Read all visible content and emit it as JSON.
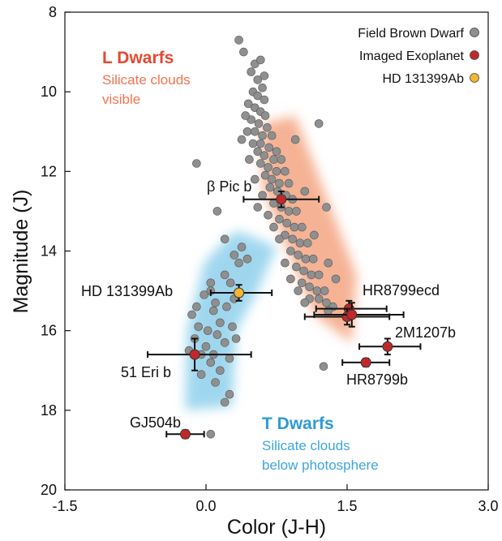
{
  "chart_data": {
    "type": "scatter",
    "xlabel": "Color (J-H)",
    "ylabel": "Magnitude (J)",
    "xlim": [
      -1.5,
      3.0
    ],
    "ylim": [
      8,
      20
    ],
    "y_inverted": true,
    "xticks": [
      -1.5,
      0.0,
      1.5,
      3.0
    ],
    "xtick_labels": [
      "-1.5",
      "0.0",
      "1.5",
      "3.0"
    ],
    "yticks": [
      8,
      10,
      12,
      14,
      16,
      18,
      20
    ],
    "ytick_labels": [
      "8",
      "10",
      "12",
      "14",
      "16",
      "18",
      "20"
    ],
    "grid": false,
    "legend_position": "top-right",
    "legend": [
      {
        "label": "Field Brown Dwarf",
        "color": "#8f8f8f"
      },
      {
        "label": "Imaged Exoplanet",
        "color": "#c0282a"
      },
      {
        "label": "HD 131399Ab",
        "color": "#f2b630"
      }
    ],
    "regions": [
      {
        "title": "L Dwarfs",
        "subtitle": [
          "Silicate clouds",
          "visible"
        ],
        "color": "#e3492f",
        "band_color": "#f4a582"
      },
      {
        "title": "T Dwarfs",
        "subtitle": [
          "Silicate clouds",
          "below photosphere"
        ],
        "color": "#2e9bd6",
        "band_color": "#8fd0ec"
      }
    ],
    "series": [
      {
        "name": "Field Brown Dwarf",
        "color": "#8f8f8f",
        "points": [
          [
            0.35,
            8.7
          ],
          [
            0.52,
            9.3
          ],
          [
            0.58,
            9.2
          ],
          [
            0.62,
            9.6
          ],
          [
            0.55,
            9.7
          ],
          [
            0.6,
            9.9
          ],
          [
            0.5,
            10.0
          ],
          [
            0.55,
            10.1
          ],
          [
            0.62,
            10.2
          ],
          [
            0.45,
            10.3
          ],
          [
            0.52,
            10.4
          ],
          [
            0.58,
            10.5
          ],
          [
            0.63,
            10.6
          ],
          [
            0.48,
            10.7
          ],
          [
            0.56,
            10.8
          ],
          [
            0.65,
            10.9
          ],
          [
            0.44,
            11.0
          ],
          [
            0.52,
            11.0
          ],
          [
            0.6,
            11.1
          ],
          [
            0.7,
            11.1
          ],
          [
            0.5,
            11.3
          ],
          [
            0.58,
            11.3
          ],
          [
            0.67,
            11.4
          ],
          [
            0.75,
            11.5
          ],
          [
            0.55,
            11.5
          ],
          [
            0.62,
            11.6
          ],
          [
            0.72,
            11.7
          ],
          [
            0.8,
            11.7
          ],
          [
            0.58,
            11.8
          ],
          [
            0.66,
            11.9
          ],
          [
            0.75,
            12.0
          ],
          [
            0.84,
            12.0
          ],
          [
            0.63,
            12.1
          ],
          [
            0.7,
            12.2
          ],
          [
            0.78,
            12.3
          ],
          [
            0.88,
            12.3
          ],
          [
            0.68,
            12.4
          ],
          [
            0.76,
            12.5
          ],
          [
            0.85,
            12.6
          ],
          [
            0.92,
            12.7
          ],
          [
            0.72,
            12.8
          ],
          [
            0.8,
            12.9
          ],
          [
            0.88,
            13.0
          ],
          [
            0.96,
            13.0
          ],
          [
            0.78,
            13.2
          ],
          [
            0.86,
            13.3
          ],
          [
            0.94,
            13.4
          ],
          [
            1.02,
            13.4
          ],
          [
            0.84,
            13.6
          ],
          [
            0.92,
            13.7
          ],
          [
            1.0,
            13.8
          ],
          [
            1.08,
            13.8
          ],
          [
            0.9,
            14.0
          ],
          [
            0.98,
            14.1
          ],
          [
            1.06,
            14.2
          ],
          [
            1.14,
            14.2
          ],
          [
            0.96,
            14.4
          ],
          [
            1.04,
            14.5
          ],
          [
            1.12,
            14.6
          ],
          [
            1.2,
            14.6
          ],
          [
            1.02,
            14.8
          ],
          [
            1.1,
            14.9
          ],
          [
            1.18,
            15.0
          ],
          [
            1.26,
            15.0
          ],
          [
            1.1,
            15.2
          ],
          [
            1.2,
            15.2
          ],
          [
            1.28,
            15.3
          ],
          [
            1.35,
            15.4
          ],
          [
            1.3,
            15.5
          ],
          [
            0.4,
            9.0
          ],
          [
            0.48,
            9.5
          ],
          [
            0.42,
            10.6
          ],
          [
            0.38,
            11.2
          ],
          [
            0.46,
            11.7
          ],
          [
            0.52,
            12.2
          ],
          [
            0.6,
            12.6
          ],
          [
            0.55,
            12.9
          ],
          [
            0.66,
            13.1
          ],
          [
            0.72,
            13.4
          ],
          [
            0.78,
            13.7
          ],
          [
            0.84,
            14.3
          ],
          [
            0.9,
            14.7
          ],
          [
            0.98,
            15.0
          ],
          [
            1.05,
            15.3
          ],
          [
            1.2,
            10.8
          ],
          [
            1.28,
            12.9
          ],
          [
            1.3,
            14.3
          ],
          [
            1.38,
            14.7
          ],
          [
            1.25,
            16.9
          ],
          [
            0.95,
            11.2
          ],
          [
            1.05,
            12.5
          ],
          [
            1.15,
            13.6
          ],
          [
            0.35,
            14.3
          ],
          [
            0.3,
            15.2
          ],
          [
            0.1,
            15.3
          ],
          [
            0.05,
            15.0
          ],
          [
            0.2,
            14.6
          ],
          [
            0.15,
            15.8
          ],
          [
            0.22,
            15.4
          ],
          [
            -0.1,
            11.8
          ],
          [
            0.12,
            13.0
          ],
          [
            0.2,
            13.7
          ],
          [
            0.3,
            14.1
          ],
          [
            0.26,
            14.8
          ],
          [
            0.38,
            13.9
          ],
          [
            0.44,
            14.2
          ],
          [
            0.05,
            14.8
          ],
          [
            -0.02,
            15.1
          ],
          [
            0.08,
            15.5
          ],
          [
            -0.1,
            15.4
          ],
          [
            -0.15,
            15.6
          ],
          [
            -0.08,
            15.9
          ],
          [
            0.02,
            16.0
          ],
          [
            0.12,
            16.1
          ],
          [
            0.2,
            16.3
          ],
          [
            0.28,
            15.9
          ],
          [
            0.32,
            16.2
          ],
          [
            -0.12,
            16.2
          ],
          [
            -0.18,
            16.5
          ],
          [
            -0.05,
            16.6
          ],
          [
            0.05,
            16.8
          ],
          [
            0.15,
            17.0
          ],
          [
            0.1,
            17.3
          ],
          [
            0.25,
            17.6
          ],
          [
            0.2,
            17.8
          ],
          [
            -0.05,
            17.1
          ],
          [
            0.0,
            16.4
          ],
          [
            0.08,
            16.6
          ],
          [
            0.25,
            16.7
          ],
          [
            0.05,
            18.6
          ]
        ]
      },
      {
        "name": "Imaged Exoplanet",
        "color": "#c0282a",
        "points": [
          {
            "label": "β Pic b",
            "x": 0.8,
            "y": 12.7,
            "xerr": [
              0.4,
              0.4
            ],
            "yerr": [
              0.2,
              0.2
            ]
          },
          {
            "label": "HR8799ecd",
            "x": 1.52,
            "y": 15.45,
            "xerr": [
              0.35,
              0.4
            ],
            "yerr": [
              0.2,
              0.2
            ]
          },
          {
            "label": "",
            "x": 1.5,
            "y": 15.65,
            "xerr": [
              0.45,
              0.45
            ],
            "yerr": [
              0.2,
              0.2
            ]
          },
          {
            "label": "",
            "x": 1.55,
            "y": 15.6,
            "xerr": [
              0.4,
              0.55
            ],
            "yerr": [
              0.3,
              0.3
            ]
          },
          {
            "label": "2M1207b",
            "x": 1.93,
            "y": 16.4,
            "xerr": [
              0.3,
              0.35
            ],
            "yerr": [
              0.2,
              0.2
            ]
          },
          {
            "label": "HR8799b",
            "x": 1.7,
            "y": 16.8,
            "xerr": [
              0.25,
              0.25
            ],
            "yerr": [
              0.1,
              0.1
            ]
          },
          {
            "label": "51 Eri b",
            "x": -0.12,
            "y": 16.6,
            "xerr": [
              0.5,
              0.6
            ],
            "yerr": [
              0.4,
              0.4
            ]
          },
          {
            "label": "GJ504b",
            "x": -0.22,
            "y": 18.6,
            "xerr": [
              0.2,
              0.2
            ],
            "yerr": [
              0.1,
              0.1
            ]
          }
        ]
      },
      {
        "name": "HD 131399Ab",
        "color": "#f2b630",
        "points": [
          {
            "label": "HD 131399Ab",
            "x": 0.35,
            "y": 15.05,
            "xerr": [
              0.3,
              0.35
            ],
            "yerr": [
              0.2,
              0.2
            ]
          }
        ]
      }
    ]
  }
}
